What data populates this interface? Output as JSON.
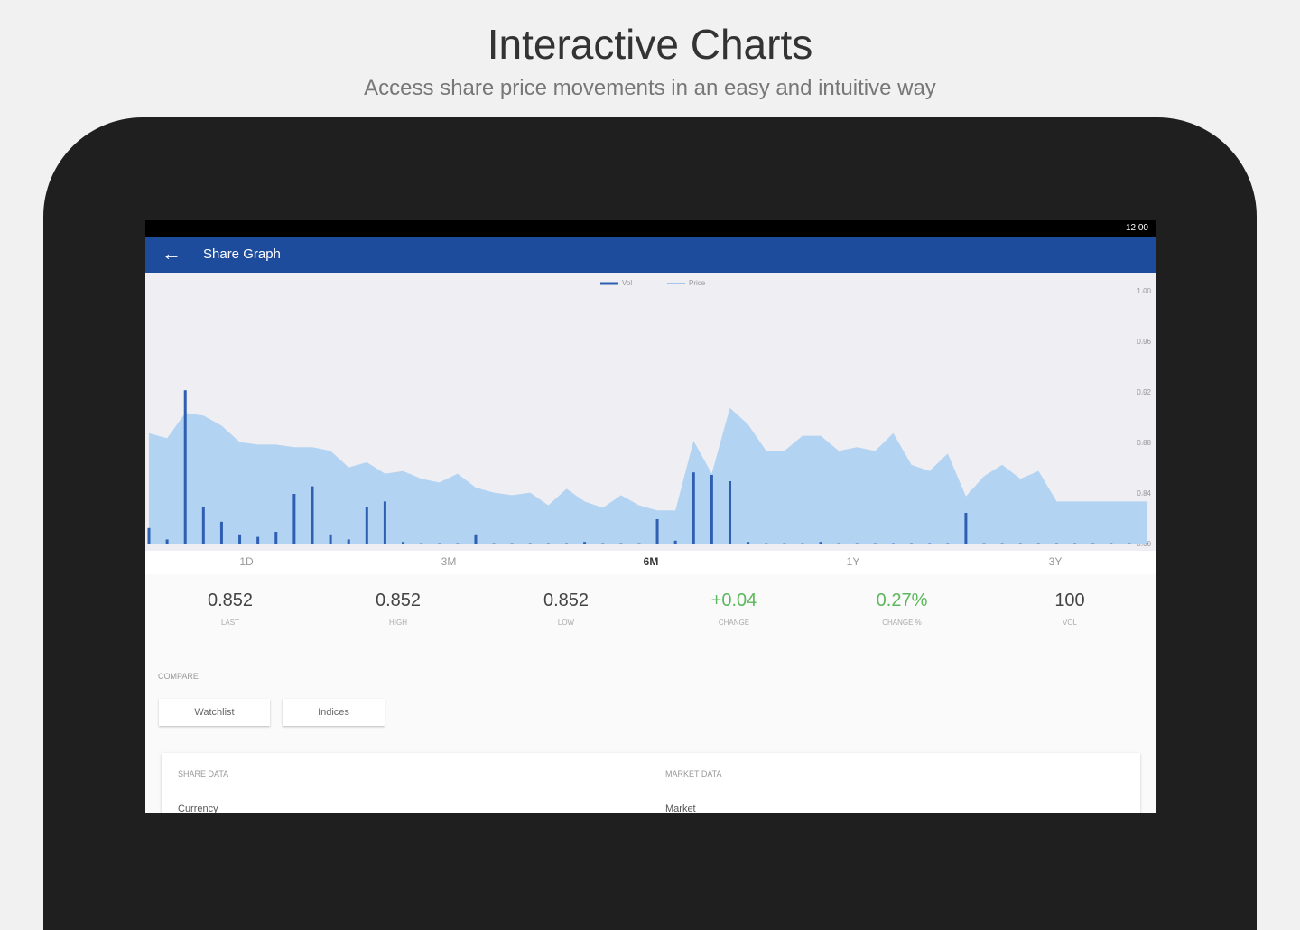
{
  "header": {
    "title": "Interactive Charts",
    "subtitle": "Access share price movements in an easy and intuitive way"
  },
  "status": {
    "time": "12:00"
  },
  "appbar": {
    "title": "Share Graph"
  },
  "chart_data": {
    "type": "area",
    "legend": [
      "Vol",
      "Price"
    ],
    "series": [
      {
        "name": "Price",
        "color": "#b3d3f2",
        "values": [
          0.888,
          0.884,
          0.904,
          0.902,
          0.894,
          0.881,
          0.879,
          0.879,
          0.877,
          0.877,
          0.874,
          0.861,
          0.865,
          0.856,
          0.858,
          0.852,
          0.849,
          0.856,
          0.845,
          0.841,
          0.839,
          0.841,
          0.831,
          0.844,
          0.834,
          0.829,
          0.839,
          0.831,
          0.827,
          0.827,
          0.882,
          0.856,
          0.908,
          0.895,
          0.874,
          0.874,
          0.886,
          0.886,
          0.874,
          0.877,
          0.874,
          0.888,
          0.863,
          0.858,
          0.872,
          0.838,
          0.854,
          0.863,
          0.852,
          0.858,
          0.834,
          0.834,
          0.834,
          0.834,
          0.834,
          0.834
        ]
      },
      {
        "name": "Vol",
        "color": "#2f5fb0",
        "values": [
          0.813,
          0.804,
          0.922,
          0.83,
          0.818,
          0.808,
          0.806,
          0.81,
          0.84,
          0.846,
          0.808,
          0.804,
          0.83,
          0.834,
          0.802,
          0.801,
          0.801,
          0.801,
          0.808,
          0.801,
          0.801,
          0.801,
          0.801,
          0.801,
          0.802,
          0.801,
          0.801,
          0.801,
          0.82,
          0.803,
          0.857,
          0.855,
          0.85,
          0.802,
          0.801,
          0.801,
          0.801,
          0.802,
          0.801,
          0.801,
          0.801,
          0.801,
          0.801,
          0.801,
          0.801,
          0.825,
          0.801,
          0.801,
          0.801,
          0.801,
          0.801,
          0.801,
          0.801,
          0.801,
          0.801,
          0.801
        ]
      }
    ],
    "ylim": [
      0.8,
      1.0
    ],
    "yticks": [
      {
        "value": 1.0,
        "label": "1.00"
      },
      0.96,
      0.92,
      0.88,
      0.84,
      {
        "value": 0.8,
        "label": "0.80"
      }
    ]
  },
  "periods": [
    "1D",
    "3M",
    "6M",
    "1Y",
    "3Y"
  ],
  "stats": [
    {
      "value": "0.852",
      "label": "LAST"
    },
    {
      "value": "0.852",
      "label": "HIGH"
    },
    {
      "value": "0.852",
      "label": "LOW"
    },
    {
      "value": "+0.04",
      "label": "CHANGE"
    },
    {
      "value": "0.27%",
      "label": "CHANGE %"
    },
    {
      "value": "100",
      "label": "VOL"
    }
  ],
  "compare": {
    "title": "COMPARE",
    "buttons": [
      "Watchlist",
      "Indices"
    ]
  },
  "data_panel": {
    "share": {
      "title": "SHARE DATA",
      "first": "Currency"
    },
    "market": {
      "title": "MARKET DATA",
      "first": "Market"
    }
  }
}
